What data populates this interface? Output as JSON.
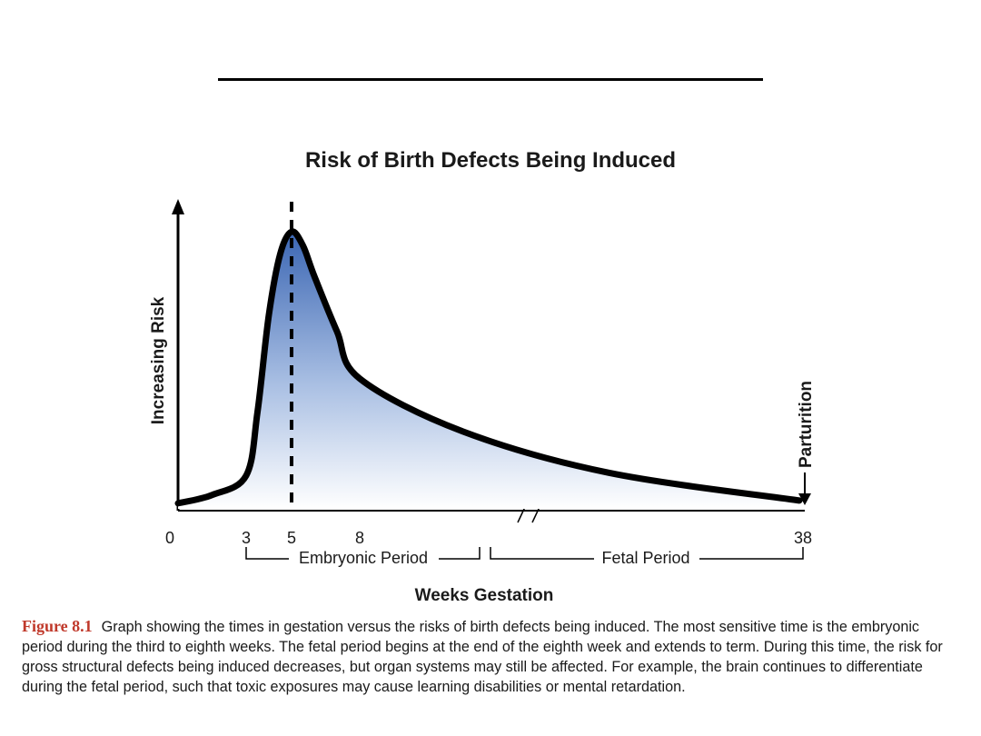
{
  "figure": {
    "label": "Figure 8.1",
    "caption": "Graph showing the times in gestation versus the risks of birth defects being induced. The most sensitive time is the embryonic period during the third to eighth weeks. The fetal period begins at the end of the eighth week and extends to term. During this time, the risk for gross structural defects being induced decreases, but organ systems may still be affected. For example, the brain continues to differentiate during the fetal period, such that toxic exposures may cause learning disabilities or mental retardation."
  },
  "chart_data": {
    "type": "area",
    "title": "Risk of Birth Defects Being Induced",
    "xlabel": "Weeks Gestation",
    "ylabel": "Increasing Risk",
    "x_ticks": [
      "0",
      "3",
      "5",
      "8",
      "38"
    ],
    "axis_break_between": [
      "8",
      "38"
    ],
    "series": [
      {
        "x": [
          0,
          1.5,
          3,
          3.5,
          4,
          4.5,
          5,
          5.5,
          6,
          7,
          8,
          15,
          25,
          38
        ],
        "y": [
          0.02,
          0.05,
          0.12,
          0.35,
          0.7,
          0.92,
          1.0,
          0.95,
          0.84,
          0.64,
          0.47,
          0.28,
          0.13,
          0.03
        ]
      }
    ],
    "peak_marker_x": 5,
    "annotations": {
      "peak_line": "dashed vertical line at week 5",
      "parturition": "Parturition"
    },
    "periods": [
      {
        "label": "Embryonic Period",
        "from": "3",
        "to": "8"
      },
      {
        "label": "Fetal Period",
        "from": "8",
        "to": "38"
      }
    ],
    "fill_color_top": "#3b66b3",
    "fill_color_bottom": "#ffffff",
    "curve_color": "#000000"
  }
}
